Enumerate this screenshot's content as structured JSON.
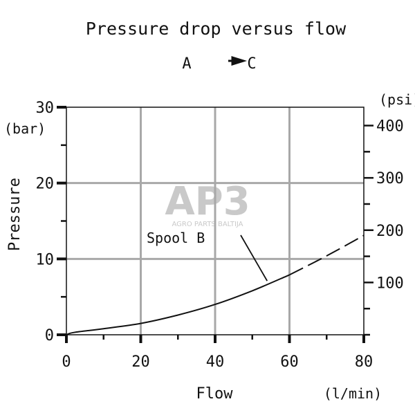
{
  "chart_data": {
    "type": "line",
    "title": "Pressure drop versus flow",
    "subtitle_from": "A",
    "subtitle_to": "C",
    "xlabel": "Flow",
    "xunit": "(l/min)",
    "ylabel": "Pressure",
    "yunit_left": "(bar)",
    "yunit_right": "(psi)",
    "xlim": [
      0,
      80
    ],
    "ylim": [
      0,
      30
    ],
    "xticks": [
      0,
      20,
      40,
      60,
      80
    ],
    "yticks": [
      0,
      10,
      20,
      30
    ],
    "yticks_right": [
      100,
      200,
      300,
      400
    ],
    "psi_per_bar": 14.5038,
    "grid": true,
    "watermark": {
      "text": "AP3",
      "subtext": "AGRO PARTS BALTIJA"
    },
    "series": [
      {
        "name": "Spool B",
        "x": [
          0,
          2,
          10,
          20,
          30,
          40,
          50,
          60
        ],
        "y": [
          0,
          0.3,
          0.8,
          1.5,
          2.6,
          4.0,
          5.8,
          7.9
        ],
        "style": "solid"
      },
      {
        "name": "Spool B",
        "x": [
          60,
          70,
          80
        ],
        "y": [
          7.9,
          10.4,
          13.1
        ],
        "style": "dashed"
      }
    ],
    "annotation": {
      "text": "Spool B",
      "points_to": [
        54,
        7.1
      ]
    }
  },
  "colors": {
    "grid": "#a8a8a8",
    "axes": "#111111",
    "line": "#111111",
    "watermark": "#c9c9c9"
  }
}
